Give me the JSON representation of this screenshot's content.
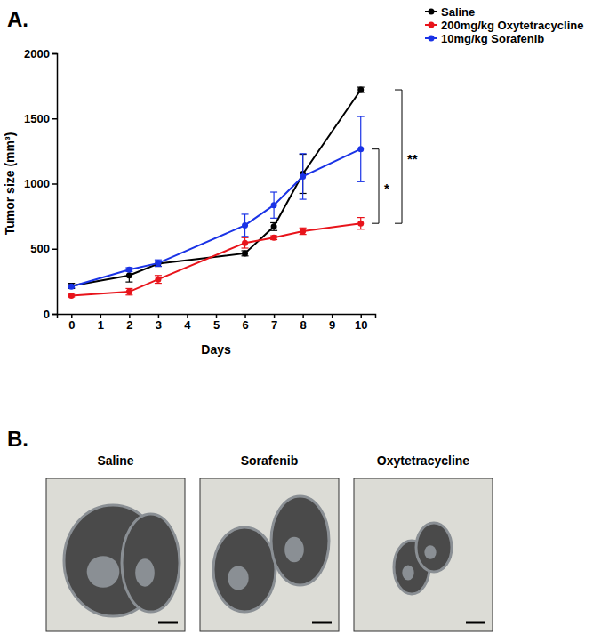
{
  "chart_data": {
    "type": "line",
    "x_label": "Days",
    "y_label": "Tumor size (mm³)",
    "x": [
      0,
      2,
      3,
      6,
      7,
      8,
      10
    ],
    "xlim": [
      -0.5,
      10.5
    ],
    "xticks": [
      0,
      1,
      2,
      3,
      4,
      5,
      6,
      7,
      8,
      9,
      10
    ],
    "ylim": [
      0,
      2000
    ],
    "yticks": [
      0,
      500,
      1000,
      1500,
      2000
    ],
    "legend": "top-right",
    "marker": "circle",
    "series": [
      {
        "name": "Saline",
        "color": "#000000",
        "values": [
          215,
          295,
          385,
          465,
          670,
          1075,
          1720
        ],
        "errors": [
          20,
          50,
          20,
          20,
          30,
          150,
          20
        ]
      },
      {
        "name": "200mg/kg Oxytetracycline",
        "color": "#e8141b",
        "values": [
          140,
          170,
          265,
          545,
          585,
          635,
          695
        ],
        "errors": [
          10,
          25,
          30,
          40,
          15,
          25,
          45
        ]
      },
      {
        "name": "10mg/kg Sorafenib",
        "color": "#1a33e6",
        "values": [
          210,
          340,
          390,
          680,
          835,
          1055,
          1265
        ],
        "errors": [
          10,
          15,
          25,
          85,
          100,
          175,
          250
        ]
      }
    ],
    "annotations": [
      {
        "text": "**",
        "y1": 1720,
        "y2": 695
      },
      {
        "text": "*",
        "y1": 1265,
        "y2": 695
      }
    ]
  },
  "panel_labels": [
    "A.",
    "B."
  ],
  "images": [
    {
      "label": "Saline"
    },
    {
      "label": "Sorafenib"
    },
    {
      "label": "Oxytetracycline"
    }
  ]
}
